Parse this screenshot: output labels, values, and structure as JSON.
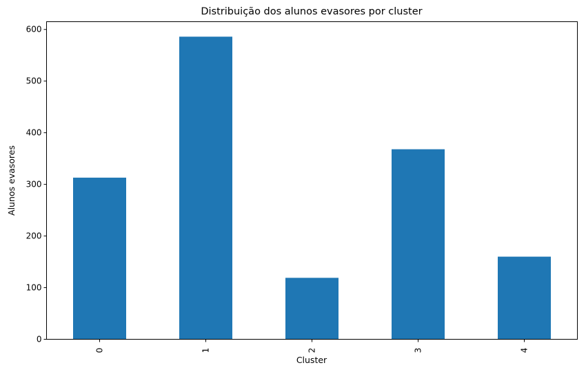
{
  "chart_data": {
    "type": "bar",
    "title": "Distribuição dos alunos evasores por cluster",
    "xlabel": "Cluster",
    "ylabel": "Alunos evasores",
    "categories": [
      "0",
      "1",
      "2",
      "3",
      "4"
    ],
    "values": [
      313,
      586,
      119,
      368,
      160
    ],
    "ylim": [
      0,
      615
    ],
    "yticks": [
      0,
      100,
      200,
      300,
      400,
      500,
      600
    ],
    "x_tick_rotation": "vertical",
    "grid": false,
    "legend": "none",
    "bar_color": "#1f77b4"
  }
}
